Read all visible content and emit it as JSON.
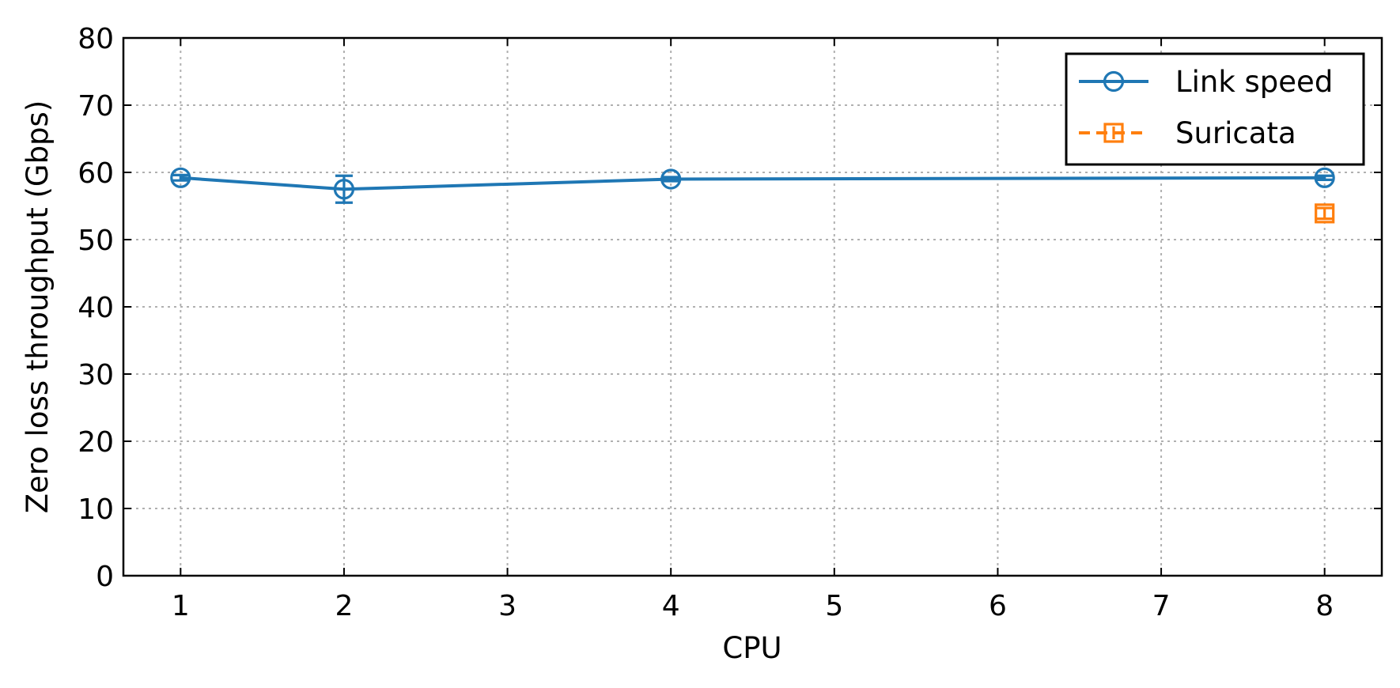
{
  "chart_data": {
    "type": "line",
    "xlabel": "CPU",
    "ylabel": "Zero loss throughput (Gbps)",
    "xlim": [
      0.65,
      8.35
    ],
    "ylim": [
      0,
      80
    ],
    "xticks": [
      1,
      2,
      3,
      4,
      5,
      6,
      7,
      8
    ],
    "yticks": [
      0,
      10,
      20,
      30,
      40,
      50,
      60,
      70,
      80
    ],
    "grid": true,
    "legend_position": "top-right",
    "series": [
      {
        "name": "Link speed",
        "color": "#1f77b4",
        "marker": "circle",
        "line_style": "solid",
        "points": [
          {
            "x": 1,
            "y": 59.2,
            "err": 0.4
          },
          {
            "x": 2,
            "y": 57.5,
            "err": 2.0
          },
          {
            "x": 4,
            "y": 59.0,
            "err": 0.3
          },
          {
            "x": 8,
            "y": 59.2,
            "err": 0.3
          }
        ]
      },
      {
        "name": "Suricata",
        "color": "#ff7f0e",
        "marker": "square",
        "line_style": "dashed",
        "points": [
          {
            "x": 8,
            "y": 53.9,
            "err": 0.8
          }
        ]
      }
    ]
  }
}
